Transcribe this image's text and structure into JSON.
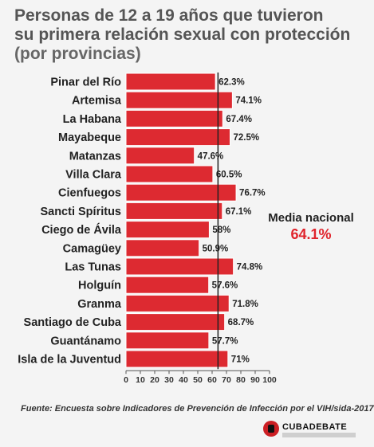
{
  "title_line1": "Personas de 12 a 19 años que tuvieron",
  "title_line2": "su primera relación sexual con protección",
  "subtitle": "(por provincias)",
  "media": {
    "label": "Media nacional",
    "value": "64.1%"
  },
  "source": "Fuente: Encuesta sobre Indicadores de Prevención de Infección por el VIH/sida-2017",
  "logo": {
    "text": "CUBADEBATE"
  },
  "colors": {
    "bar": "#dd2a31",
    "bar_border": "#ffffff",
    "media_line": "#222222",
    "media_value": "#e0242c",
    "axis": "#555555"
  },
  "chart_data": {
    "type": "bar",
    "orientation": "horizontal",
    "categories": [
      "Pinar del Río",
      "Artemisa",
      "La Habana",
      "Mayabeque",
      "Matanzas",
      "Villa Clara",
      "Cienfuegos",
      "Sancti Spíritus",
      "Ciego de Ávila",
      "Camagüey",
      "Las Tunas",
      "Holguín",
      "Granma",
      "Santiago de Cuba",
      "Guantánamo",
      "Isla de la Juventud"
    ],
    "values": [
      62.3,
      74.1,
      67.4,
      72.5,
      47.6,
      60.5,
      76.7,
      67.1,
      58,
      50.9,
      74.8,
      57.6,
      71.8,
      68.7,
      57.7,
      71
    ],
    "value_labels": [
      "62.3%",
      "74.1%",
      "67.4%",
      "72.5%",
      "47.6%",
      "60.5%",
      "76.7%",
      "67.1%",
      "58%",
      "50.9%",
      "74.8%",
      "57.6%",
      "71.8%",
      "68.7%",
      "57.7%",
      "71%"
    ],
    "xlim": [
      0,
      100
    ],
    "xticks": [
      0,
      10,
      20,
      30,
      40,
      50,
      60,
      70,
      80,
      90,
      100
    ],
    "reference_line": 64.1,
    "grid": false,
    "legend": "none"
  }
}
